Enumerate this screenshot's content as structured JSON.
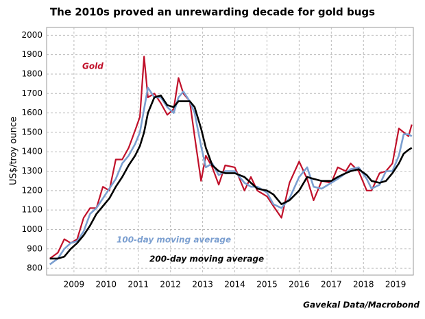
{
  "chart_data": {
    "type": "line",
    "title": "The 2010s proved an unrewarding decade for gold bugs",
    "y_label": "US$/troy ounce",
    "source": "Gavekal Data/Macrobond",
    "x": [
      2008.75,
      2009.0,
      2009.2,
      2009.4,
      2009.6,
      2009.8,
      2010.0,
      2010.2,
      2010.4,
      2010.6,
      2010.8,
      2011.0,
      2011.2,
      2011.4,
      2011.55,
      2011.68,
      2011.8,
      2012.0,
      2012.2,
      2012.4,
      2012.6,
      2012.75,
      2012.9,
      2013.1,
      2013.25,
      2013.45,
      2013.6,
      2013.8,
      2014.0,
      2014.2,
      2014.5,
      2014.8,
      2015.0,
      2015.2,
      2015.5,
      2015.7,
      2015.95,
      2016.2,
      2016.5,
      2016.75,
      2016.95,
      2017.2,
      2017.5,
      2017.7,
      2017.95,
      2018.1,
      2018.35,
      2018.6,
      2018.75,
      2019.0,
      2019.2,
      2019.4,
      2019.6,
      2019.75,
      2019.9,
      2020.0
    ],
    "series": [
      {
        "name": "Gold",
        "color": "#c0102a",
        "width": 2.2,
        "values": [
          850,
          880,
          950,
          930,
          950,
          1060,
          1110,
          1110,
          1220,
          1200,
          1360,
          1360,
          1420,
          1510,
          1580,
          1890,
          1680,
          1700,
          1650,
          1590,
          1620,
          1780,
          1700,
          1660,
          1480,
          1250,
          1380,
          1320,
          1230,
          1330,
          1320,
          1200,
          1270,
          1200,
          1170,
          1120,
          1060,
          1240,
          1350,
          1260,
          1150,
          1250,
          1240,
          1320,
          1300,
          1340,
          1300,
          1200,
          1200,
          1290,
          1300,
          1340,
          1520,
          1500,
          1480,
          1540
        ]
      },
      {
        "name": "100-day moving average",
        "color": "#7b9fd0",
        "width": 2.6,
        "values": [
          820,
          850,
          900,
          930,
          940,
          990,
          1080,
          1110,
          1160,
          1210,
          1260,
          1340,
          1380,
          1440,
          1500,
          1620,
          1730,
          1680,
          1680,
          1630,
          1600,
          1680,
          1710,
          1660,
          1600,
          1430,
          1320,
          1340,
          1280,
          1300,
          1300,
          1240,
          1220,
          1220,
          1190,
          1130,
          1110,
          1160,
          1270,
          1320,
          1220,
          1210,
          1240,
          1260,
          1290,
          1310,
          1320,
          1260,
          1210,
          1230,
          1300,
          1300,
          1380,
          1490,
          1490,
          1480
        ]
      },
      {
        "name": "200-day moving average",
        "color": "#000000",
        "width": 2.6,
        "values": [
          850,
          850,
          860,
          900,
          930,
          970,
          1020,
          1080,
          1120,
          1160,
          1220,
          1270,
          1330,
          1380,
          1430,
          1500,
          1600,
          1680,
          1690,
          1640,
          1630,
          1660,
          1660,
          1660,
          1630,
          1520,
          1420,
          1330,
          1300,
          1290,
          1290,
          1270,
          1240,
          1210,
          1200,
          1180,
          1130,
          1150,
          1200,
          1270,
          1260,
          1250,
          1250,
          1270,
          1290,
          1300,
          1310,
          1280,
          1250,
          1240,
          1250,
          1290,
          1340,
          1390,
          1410,
          1420
        ]
      }
    ],
    "xlim": [
      2008.65,
      2020.05
    ],
    "xticks": [
      {
        "value": 2009.5,
        "label": "2009"
      },
      {
        "value": 2010.5,
        "label": "2010"
      },
      {
        "value": 2011.5,
        "label": "2011"
      },
      {
        "value": 2012.5,
        "label": "2012"
      },
      {
        "value": 2013.5,
        "label": "2013"
      },
      {
        "value": 2014.5,
        "label": "2014"
      },
      {
        "value": 2015.5,
        "label": "2015"
      },
      {
        "value": 2016.5,
        "label": "2016"
      },
      {
        "value": 2017.5,
        "label": "2017"
      },
      {
        "value": 2018.5,
        "label": "2018"
      },
      {
        "value": 2019.5,
        "label": "2019"
      }
    ],
    "ylim": [
      765,
      2040
    ],
    "yticks": [
      800,
      900,
      1000,
      1100,
      1200,
      1300,
      1400,
      1500,
      1600,
      1700,
      1800,
      1900,
      2000
    ],
    "grid": true
  }
}
